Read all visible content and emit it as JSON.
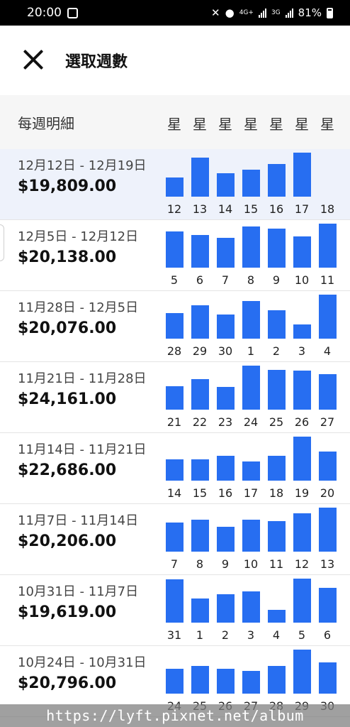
{
  "status_bar": {
    "time": "20:00",
    "network_4g": "4G+",
    "network_3g": "3G",
    "battery": "81%"
  },
  "header": {
    "title": "選取週數",
    "close_icon": "close-icon"
  },
  "subheader": {
    "label": "每週明細",
    "day_labels": [
      "星",
      "星",
      "星",
      "星",
      "星",
      "星",
      "星"
    ]
  },
  "accent_color": "#276ef1",
  "weeks": [
    {
      "range": "12月12日 - 12月19日",
      "total": "$19,809.00",
      "selected": true,
      "days": [
        "12",
        "13",
        "14",
        "15",
        "16",
        "17",
        "18"
      ],
      "levels": [
        0.44,
        0.88,
        0.54,
        0.62,
        0.74,
        1.0,
        0
      ]
    },
    {
      "range": "12月5日 - 12月12日",
      "total": "$20,138.00",
      "selected": false,
      "days": [
        "5",
        "6",
        "7",
        "8",
        "9",
        "10",
        "11"
      ],
      "levels": [
        0.82,
        0.74,
        0.67,
        0.93,
        0.88,
        0.71,
        1.0
      ]
    },
    {
      "range": "11月28日 - 12月5日",
      "total": "$20,076.00",
      "selected": false,
      "days": [
        "28",
        "29",
        "30",
        "1",
        "2",
        "3",
        "4"
      ],
      "levels": [
        0.58,
        0.75,
        0.55,
        0.85,
        0.65,
        0.33,
        1.0
      ]
    },
    {
      "range": "11月21日 - 11月28日",
      "total": "$24,161.00",
      "selected": false,
      "days": [
        "21",
        "22",
        "23",
        "24",
        "25",
        "26",
        "27"
      ],
      "levels": [
        0.54,
        0.69,
        0.52,
        1.0,
        0.91,
        0.89,
        0.8
      ]
    },
    {
      "range": "11月14日 - 11月21日",
      "total": "$22,686.00",
      "selected": false,
      "days": [
        "14",
        "15",
        "16",
        "17",
        "18",
        "19",
        "20"
      ],
      "levels": [
        0.49,
        0.48,
        0.57,
        0.43,
        0.57,
        1.0,
        0.66
      ]
    },
    {
      "range": "11月7日 - 11月14日",
      "total": "$20,206.00",
      "selected": false,
      "days": [
        "7",
        "8",
        "9",
        "10",
        "11",
        "12",
        "13"
      ],
      "levels": [
        0.66,
        0.72,
        0.57,
        0.72,
        0.69,
        0.87,
        1.0
      ]
    },
    {
      "range": "10月31日 - 11月7日",
      "total": "$19,619.00",
      "selected": false,
      "days": [
        "31",
        "1",
        "2",
        "3",
        "4",
        "5",
        "6"
      ],
      "levels": [
        0.98,
        0.55,
        0.65,
        0.71,
        0.29,
        1.0,
        0.79
      ]
    },
    {
      "range": "10月24日 - 10月31日",
      "total": "$20,796.00",
      "selected": false,
      "days": [
        "24",
        "25",
        "26",
        "27",
        "28",
        "29",
        "30"
      ],
      "levels": [
        0.57,
        0.63,
        0.57,
        0.51,
        0.63,
        1.0,
        0.71
      ]
    }
  ],
  "watermark": "https://lyft.pixnet.net/album"
}
